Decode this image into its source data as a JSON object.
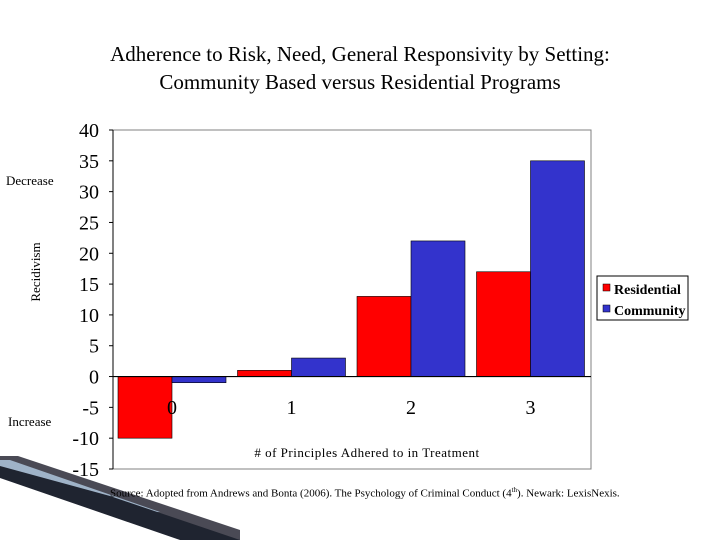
{
  "title_line1": "Adherence to Risk, Need, General Responsivity by Setting:",
  "title_line2": "Community Based versus Residential Programs",
  "side_labels": {
    "decrease": "Decrease",
    "increase": "Increase"
  },
  "source": {
    "prefix": "Source:",
    "text": "Adopted from Andrews and Bonta (2006). The Psychology of Criminal Conduct (4",
    "sup": "th",
    "suffix": "). Newark: LexisNexis."
  },
  "chart_data": {
    "type": "bar",
    "title": "Adherence to Risk, Need, General Responsivity by Setting: Community Based versus Residential Programs",
    "xlabel": "# of Principles Adhered to in Treatment",
    "ylabel": "Recidivism",
    "categories": [
      "0",
      "1",
      "2",
      "3"
    ],
    "series": [
      {
        "name": "Residential",
        "color": "#ff0000",
        "values": [
          -10,
          1,
          13,
          17
        ]
      },
      {
        "name": "Community",
        "color": "#3333cc",
        "values": [
          -1,
          3,
          22,
          35
        ]
      }
    ],
    "ylim": [
      -15,
      40
    ],
    "yticks": [
      40,
      35,
      30,
      25,
      20,
      15,
      10,
      5,
      0,
      -5,
      -10,
      -15
    ],
    "legend": "right",
    "grid": false
  }
}
